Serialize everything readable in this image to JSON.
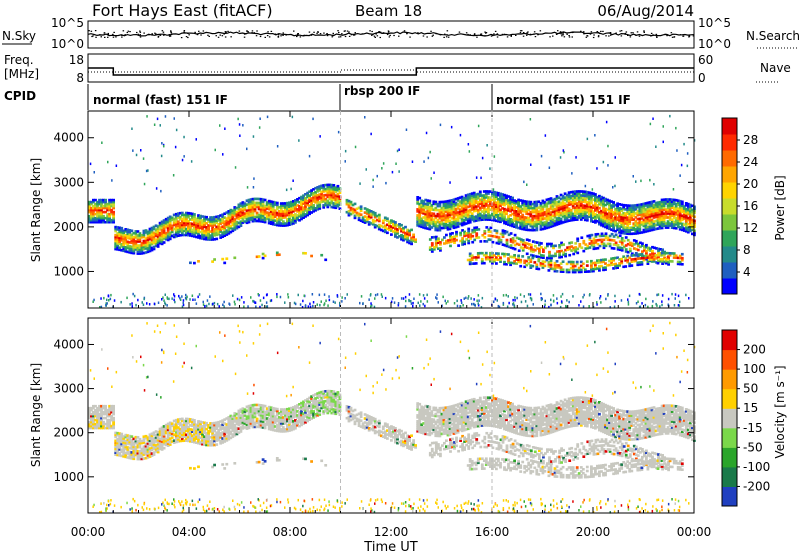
{
  "header": {
    "radar_title": "Fort Hays East (fitACF)",
    "beam_label": "Beam 18",
    "date": "06/Aug/2014"
  },
  "noise_panel": {
    "left_label": "N.Sky",
    "right_label": "N.Search",
    "left_ticks": [
      "10^5",
      "10^0"
    ],
    "right_ticks": [
      "10^5",
      "10^0"
    ]
  },
  "freq_panel": {
    "left_label_1": "Freq.",
    "left_label_2": "[MHz]",
    "left_ticks": [
      "18",
      "8"
    ],
    "right_ticks": [
      "60",
      "0"
    ],
    "right_label": "Nave"
  },
  "cpid_panel": {
    "label": "CPID",
    "segments": [
      {
        "text": "normal (fast) 151 IF",
        "start_hr": 0
      },
      {
        "text": "rbsp 200 IF",
        "start_hr": 10
      },
      {
        "text": "normal (fast) 151 IF",
        "start_hr": 16
      }
    ]
  },
  "power_colorbar": {
    "label": "Power [dB]",
    "ticks": [
      "28",
      "24",
      "20",
      "16",
      "12",
      "8",
      "4"
    ],
    "colors": [
      "#0000ff",
      "#1f5fc0",
      "#238a8a",
      "#2fa55a",
      "#7cc63c",
      "#c8dc2c",
      "#ffd400",
      "#ffa500",
      "#ff6a00",
      "#ff2a00",
      "#e00000"
    ]
  },
  "velocity_colorbar": {
    "label": "Velocity [m s⁻¹]",
    "ticks": [
      "200",
      "100",
      "50",
      "15",
      "-15",
      "-50",
      "-100",
      "-200"
    ],
    "colors": [
      "#2040c0",
      "#1a7a4a",
      "#2aa52a",
      "#7ad84a",
      "#c8c8c0",
      "#ffd000",
      "#ff9a00",
      "#ff5000",
      "#e00000"
    ]
  },
  "xaxis": {
    "label": "Time UT",
    "ticks": [
      "00:00",
      "04:00",
      "08:00",
      "12:00",
      "16:00",
      "20:00",
      "00:00"
    ]
  },
  "chart_data": [
    {
      "type": "heatmap",
      "title": "",
      "xlabel": "",
      "ylabel": "Slant Range [km]",
      "xlim": [
        0,
        24
      ],
      "ylim": [
        180,
        4600
      ],
      "yticks": [
        1000,
        2000,
        3000,
        4000
      ],
      "color_scale": "Power [dB]",
      "color_range": [
        0,
        30
      ]
    },
    {
      "type": "heatmap",
      "title": "",
      "xlabel": "Time UT",
      "ylabel": "Slant Range [km]",
      "xlim": [
        0,
        24
      ],
      "ylim": [
        180,
        4600
      ],
      "yticks": [
        1000,
        2000,
        3000,
        4000
      ],
      "color_scale": "Velocity [m s⁻¹]",
      "color_range": [
        -200,
        200
      ]
    },
    {
      "type": "line",
      "title": "",
      "xlabel": "",
      "ylabel": "Freq. [MHz]",
      "x": [
        0,
        1,
        1,
        10,
        10,
        13,
        13,
        24
      ],
      "series": [
        {
          "name": "",
          "values": [
            13,
            13,
            10.5,
            10.5,
            10.5,
            10.5,
            13,
            13
          ]
        }
      ]
    }
  ]
}
